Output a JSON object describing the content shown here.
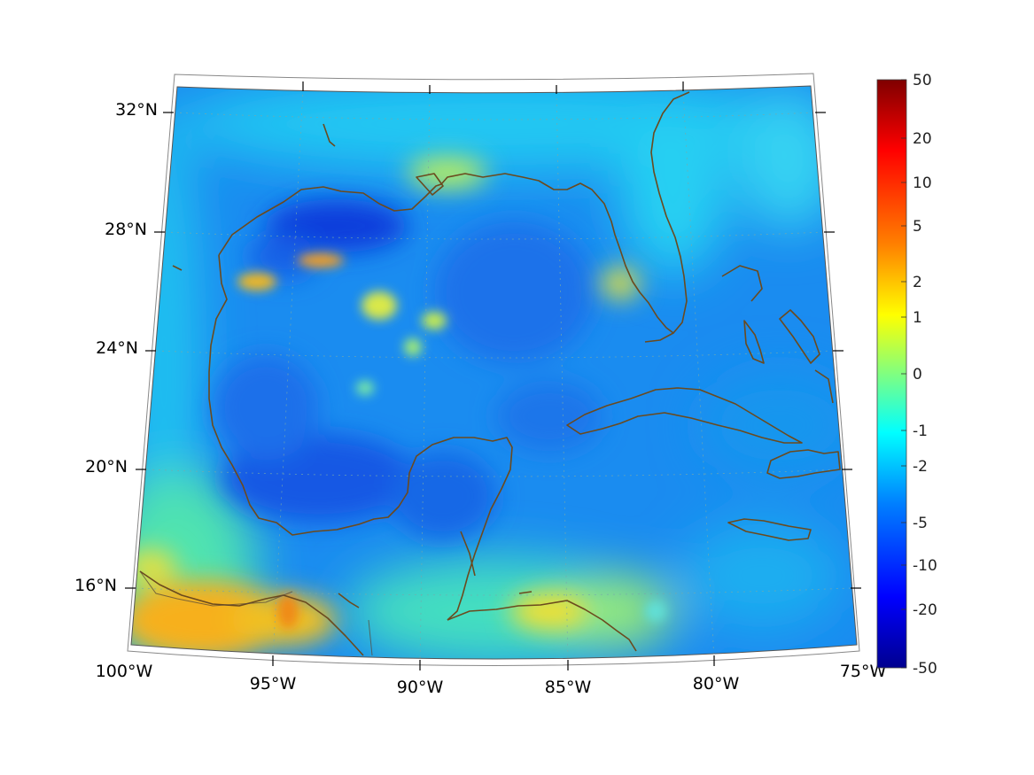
{
  "map": {
    "lon_labels": [
      "100°W",
      "95°W",
      "90°W",
      "85°W",
      "80°W",
      "75°W"
    ],
    "lat_labels": [
      "32°N",
      "28°N",
      "24°N",
      "20°N",
      "16°N"
    ],
    "graticule_style": "dotted",
    "coastline_color": "#6b4a1e",
    "land_border_color": "#5a4a3a"
  },
  "colorbar": {
    "tick_labels": [
      "50",
      "20",
      "10",
      "5",
      "2",
      "1",
      "0",
      "-1",
      "-2",
      "-5",
      "-10",
      "-20",
      "-50"
    ],
    "colors": [
      "#7f0000",
      "#ff0000",
      "#ff8000",
      "#ffff00",
      "#80ff80",
      "#00ffff",
      "#0080ff",
      "#0000ff",
      "#00008f"
    ]
  }
}
